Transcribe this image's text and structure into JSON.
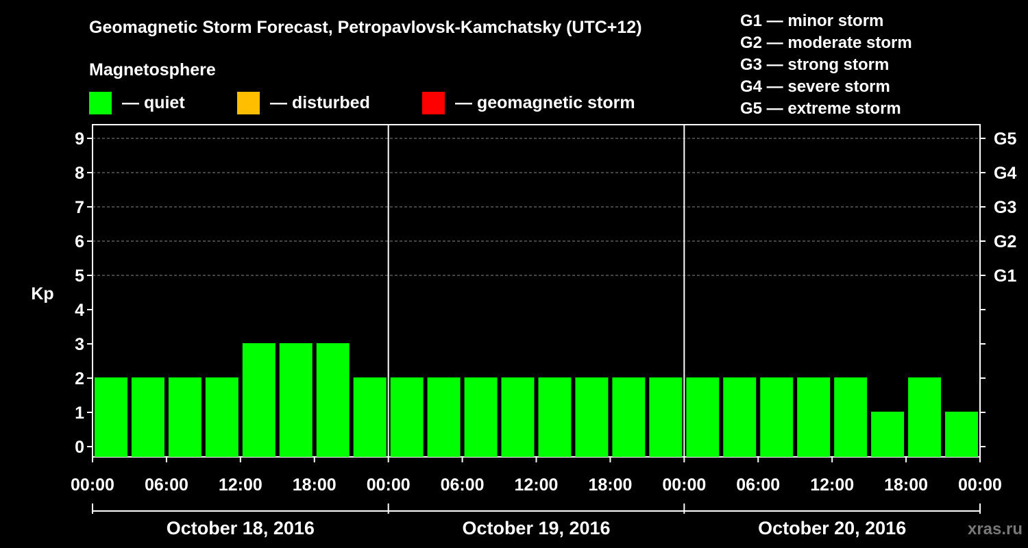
{
  "chart_data": {
    "type": "bar",
    "title": "Geomagnetic Storm Forecast, Petropavlovsk-Kamchatsky (UTC+12)",
    "ylabel": "Kp",
    "ylim": [
      0,
      9
    ],
    "y_ticks": [
      "0",
      "1",
      "2",
      "3",
      "4",
      "5",
      "6",
      "7",
      "8",
      "9"
    ],
    "right_ticks": [
      {
        "kp": 5,
        "label": "G1"
      },
      {
        "kp": 6,
        "label": "G2"
      },
      {
        "kp": 7,
        "label": "G3"
      },
      {
        "kp": 8,
        "label": "G4"
      },
      {
        "kp": 9,
        "label": "G5"
      }
    ],
    "x_ticks": [
      "00:00",
      "06:00",
      "12:00",
      "18:00",
      "00:00",
      "06:00",
      "12:00",
      "18:00",
      "00:00",
      "06:00",
      "12:00",
      "18:00",
      "00:00"
    ],
    "days": [
      "October 18, 2016",
      "October 19, 2016",
      "October 20, 2016"
    ],
    "values": [
      2,
      2,
      2,
      2,
      3,
      3,
      3,
      2,
      2,
      2,
      2,
      2,
      2,
      2,
      2,
      2,
      2,
      2,
      2,
      2,
      2,
      1,
      2,
      1
    ],
    "colors": {
      "quiet": "#00ff00",
      "disturbed": "#ffbf00",
      "storm": "#ff0000"
    },
    "legend_title": "Magnetosphere",
    "legend": [
      {
        "key": "quiet",
        "label": "— quiet"
      },
      {
        "key": "disturbed",
        "label": "— disturbed"
      },
      {
        "key": "storm",
        "label": "— geomagnetic storm"
      }
    ],
    "scale": [
      "G1 — minor storm",
      "G2 — moderate storm",
      "G3 — strong storm",
      "G4 — severe storm",
      "G5 — extreme storm"
    ],
    "watermark": "xras.ru"
  }
}
